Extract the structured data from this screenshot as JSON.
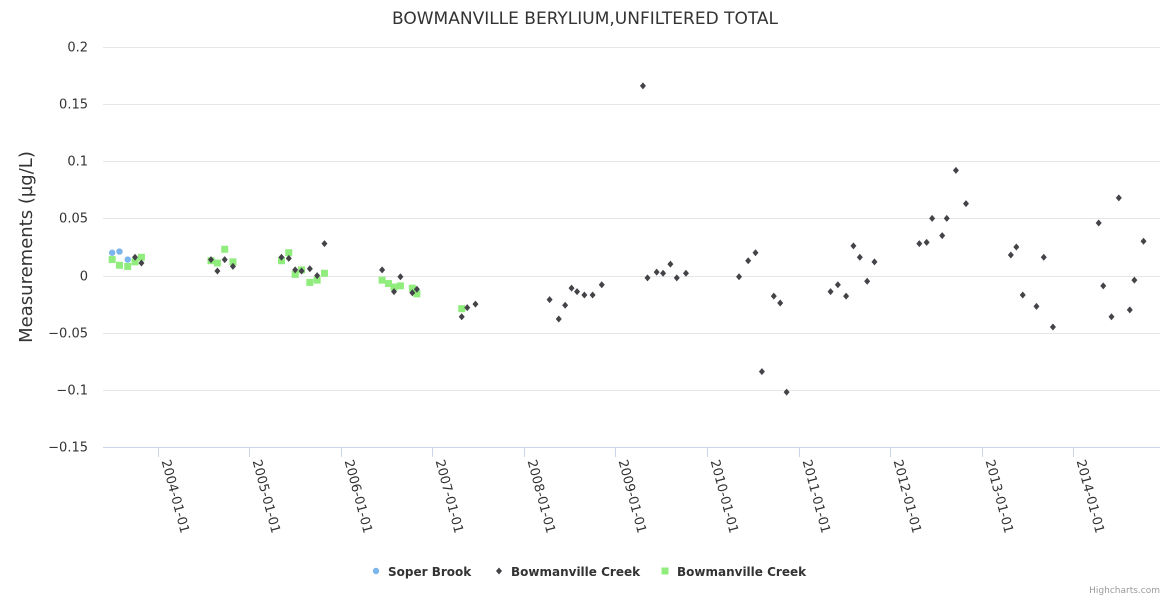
{
  "chart_data": {
    "type": "scatter",
    "title": "BOWMANVILLE BERYLIUM,UNFILTERED TOTAL",
    "ylabel": "Measurements (µg/L)",
    "xlabel": "",
    "ylim": [
      -0.15,
      0.2
    ],
    "yticks": [
      0.2,
      0.15,
      0.1,
      0.05,
      0,
      -0.05,
      -0.1,
      -0.15
    ],
    "ytick_labels": [
      "0.2",
      "0.15",
      "0.1",
      "0.05",
      "0",
      "−0.05",
      "−0.1",
      "−0.15"
    ],
    "xlim": [
      2003.4,
      2014.95
    ],
    "xticks": [
      2004,
      2005,
      2006,
      2007,
      2008,
      2009,
      2010,
      2011,
      2012,
      2013,
      2014
    ],
    "xtick_labels": [
      "2004-01-01",
      "2005-01-01",
      "2006-01-01",
      "2007-01-01",
      "2008-01-01",
      "2009-01-01",
      "2010-01-01",
      "2011-01-01",
      "2012-01-01",
      "2013-01-01",
      "2014-01-01"
    ],
    "grid": true,
    "legend_position": "bottom-center",
    "series": [
      {
        "name": "Soper Brook",
        "marker": "circle",
        "color": "#7cb5ec",
        "points": [
          [
            2003.5,
            0.02
          ],
          [
            2003.58,
            0.021
          ],
          [
            2003.67,
            0.014
          ]
        ]
      },
      {
        "name": "Bowmanville Creek",
        "marker": "diamond",
        "color": "#434348",
        "points": [
          [
            2003.75,
            0.016
          ],
          [
            2003.82,
            0.011
          ],
          [
            2004.58,
            0.014
          ],
          [
            2004.65,
            0.004
          ],
          [
            2004.73,
            0.014
          ],
          [
            2004.82,
            0.008
          ],
          [
            2005.35,
            0.016
          ],
          [
            2005.43,
            0.015
          ],
          [
            2005.5,
            0.005
          ],
          [
            2005.57,
            0.004
          ],
          [
            2005.66,
            0.006
          ],
          [
            2005.74,
            0.0
          ],
          [
            2005.82,
            0.028
          ],
          [
            2006.45,
            0.005
          ],
          [
            2006.58,
            -0.014
          ],
          [
            2006.65,
            -0.001
          ],
          [
            2006.78,
            -0.015
          ],
          [
            2006.83,
            -0.012
          ],
          [
            2007.32,
            -0.036
          ],
          [
            2007.38,
            -0.028
          ],
          [
            2007.47,
            -0.025
          ],
          [
            2008.28,
            -0.021
          ],
          [
            2008.38,
            -0.038
          ],
          [
            2008.45,
            -0.026
          ],
          [
            2008.52,
            -0.011
          ],
          [
            2008.58,
            -0.014
          ],
          [
            2008.66,
            -0.017
          ],
          [
            2008.75,
            -0.017
          ],
          [
            2008.85,
            -0.008
          ],
          [
            2009.3,
            0.166
          ],
          [
            2009.35,
            -0.002
          ],
          [
            2009.45,
            0.003
          ],
          [
            2009.52,
            0.002
          ],
          [
            2009.6,
            0.01
          ],
          [
            2009.67,
            -0.002
          ],
          [
            2009.77,
            0.002
          ],
          [
            2010.35,
            -0.001
          ],
          [
            2010.45,
            0.013
          ],
          [
            2010.53,
            0.02
          ],
          [
            2010.6,
            -0.084
          ],
          [
            2010.73,
            -0.018
          ],
          [
            2010.8,
            -0.024
          ],
          [
            2010.87,
            -0.102
          ],
          [
            2011.35,
            -0.014
          ],
          [
            2011.43,
            -0.008
          ],
          [
            2011.52,
            -0.018
          ],
          [
            2011.6,
            0.026
          ],
          [
            2011.67,
            0.016
          ],
          [
            2011.75,
            -0.005
          ],
          [
            2011.83,
            0.012
          ],
          [
            2012.32,
            0.028
          ],
          [
            2012.4,
            0.029
          ],
          [
            2012.46,
            0.05
          ],
          [
            2012.57,
            0.035
          ],
          [
            2012.62,
            0.05
          ],
          [
            2012.72,
            0.092
          ],
          [
            2012.83,
            0.063
          ],
          [
            2013.32,
            0.018
          ],
          [
            2013.38,
            0.025
          ],
          [
            2013.45,
            -0.017
          ],
          [
            2013.6,
            -0.027
          ],
          [
            2013.68,
            0.016
          ],
          [
            2013.78,
            -0.045
          ],
          [
            2014.28,
            0.046
          ],
          [
            2014.33,
            -0.009
          ],
          [
            2014.42,
            -0.036
          ],
          [
            2014.5,
            0.068
          ],
          [
            2014.62,
            -0.03
          ],
          [
            2014.67,
            -0.004
          ],
          [
            2014.77,
            0.03
          ]
        ]
      },
      {
        "name": "Bowmanville Creek",
        "marker": "square",
        "color": "#90ed7d",
        "points": [
          [
            2003.5,
            0.014
          ],
          [
            2003.58,
            0.009
          ],
          [
            2003.67,
            0.008
          ],
          [
            2003.75,
            0.012
          ],
          [
            2003.82,
            0.016
          ],
          [
            2004.58,
            0.013
          ],
          [
            2004.65,
            0.011
          ],
          [
            2004.73,
            0.023
          ],
          [
            2004.82,
            0.012
          ],
          [
            2005.35,
            0.013
          ],
          [
            2005.43,
            0.02
          ],
          [
            2005.5,
            0.001
          ],
          [
            2005.57,
            0.005
          ],
          [
            2005.66,
            -0.006
          ],
          [
            2005.74,
            -0.004
          ],
          [
            2005.82,
            0.002
          ],
          [
            2006.45,
            -0.004
          ],
          [
            2006.52,
            -0.007
          ],
          [
            2006.58,
            -0.01
          ],
          [
            2006.65,
            -0.009
          ],
          [
            2006.78,
            -0.011
          ],
          [
            2006.83,
            -0.016
          ],
          [
            2007.32,
            -0.029
          ]
        ]
      }
    ]
  },
  "credits": "Highcharts.com"
}
